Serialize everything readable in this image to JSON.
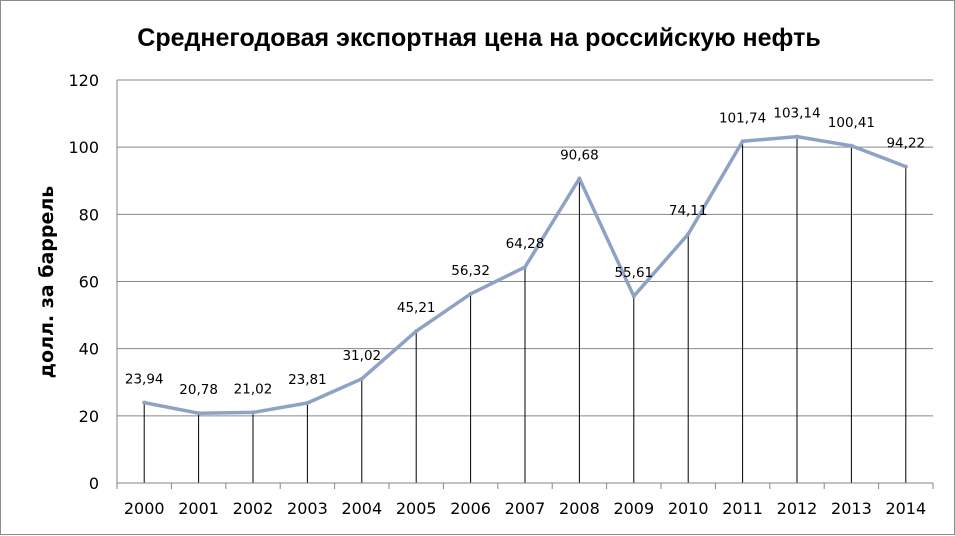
{
  "chart_data": {
    "type": "line",
    "title": "Среднегодовая экспортная цена на российскую нефть",
    "ylabel": "долл. за баррель",
    "xlabel": "",
    "categories": [
      "2000",
      "2001",
      "2002",
      "2003",
      "2004",
      "2005",
      "2006",
      "2007",
      "2008",
      "2009",
      "2010",
      "2011",
      "2012",
      "2013",
      "2014"
    ],
    "series": [
      {
        "values": [
          23.94,
          20.78,
          21.02,
          23.81,
          31.02,
          45.21,
          56.32,
          64.28,
          90.68,
          55.61,
          74.11,
          101.74,
          103.14,
          100.41,
          94.22
        ],
        "labels": [
          "23,94",
          "20,78",
          "21,02",
          "23,81",
          "31,02",
          "45,21",
          "56,32",
          "64,28",
          "90,68",
          "55,61",
          "74,11",
          "101,74",
          "103,14",
          "100,41",
          "94,22"
        ],
        "color": "#8ea2c6"
      }
    ],
    "ylim": [
      0,
      120
    ],
    "yticks": [
      "0",
      "20",
      "40",
      "60",
      "80",
      "100",
      "120"
    ],
    "grid": true,
    "drop_lines": true,
    "legend": "none"
  }
}
